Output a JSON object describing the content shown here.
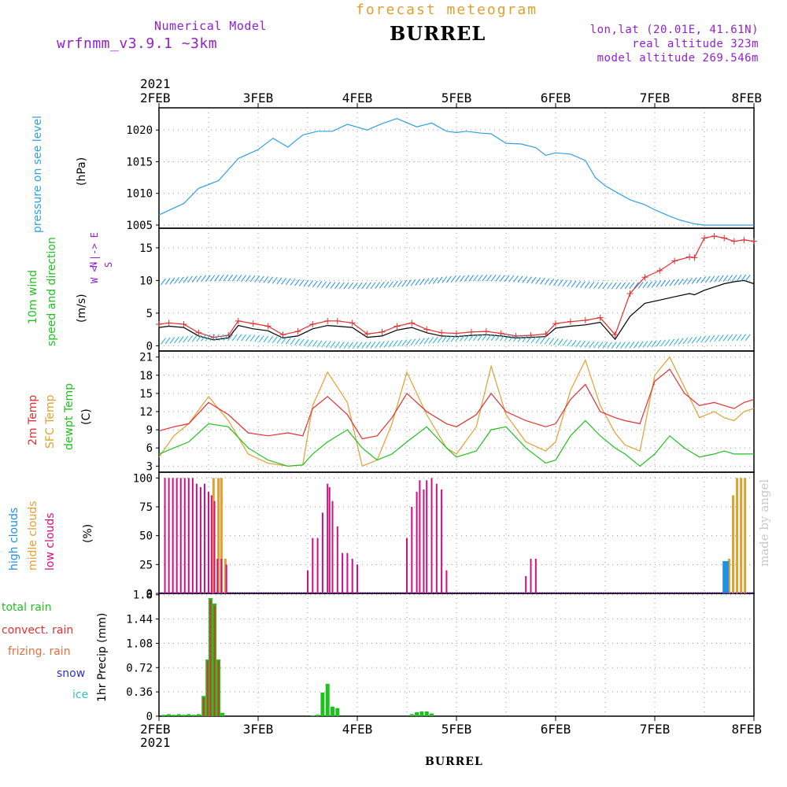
{
  "header": {
    "model_label": "Numerical Model",
    "model_name": "wrfnmm_v3.9.1   ~3km",
    "title": "forecast meteogram",
    "station": "BURREL",
    "lonlat": "lon,lat (20.01E, 41.61N)",
    "real_altitude": "real altitude 323m",
    "model_altitude": "model altitude  269.546m"
  },
  "footer": {
    "station": "BURREL",
    "credit": "made by angel"
  },
  "colors": {
    "pressure": "#30a0e0",
    "wind_speed": "#000000",
    "gust": "#e03030",
    "temp2m": "#e03030",
    "sfc_temp": "#e0a030",
    "dewpt": "#20c020",
    "high_clouds": "#2090e0",
    "mid_clouds": "#e0a030",
    "low_clouds": "#d01080",
    "total_rain": "#20c020",
    "convect_rain": "#e03030",
    "frizing_rain": "#e07040",
    "snow": "#3030c0",
    "ice": "#30c0c0"
  },
  "chart_data": {
    "type": "line",
    "x_year": "2021",
    "x_ticks": [
      "2FEB",
      "3FEB",
      "4FEB",
      "5FEB",
      "6FEB",
      "7FEB",
      "8FEB"
    ],
    "x_range_days": [
      0,
      6
    ],
    "panels": {
      "pressure": {
        "labels": [
          "pressure on see level",
          "(hPa)"
        ],
        "yticks": [
          "1005",
          "1010",
          "1015",
          "1020"
        ],
        "ylim": [
          1004.5,
          1023.5
        ],
        "x": [
          0,
          0.25,
          0.4,
          0.6,
          0.8,
          1.0,
          1.15,
          1.3,
          1.45,
          1.6,
          1.75,
          1.9,
          2.1,
          2.25,
          2.4,
          2.6,
          2.75,
          2.9,
          3.0,
          3.1,
          3.25,
          3.35,
          3.5,
          3.65,
          3.8,
          3.9,
          4.0,
          4.15,
          4.3,
          4.4,
          4.5,
          4.6,
          4.75,
          4.9,
          5.0,
          5.15,
          5.25,
          5.4,
          5.5,
          5.65,
          5.8,
          5.9,
          6.0
        ],
        "values": [
          1006.6,
          1008.4,
          1010.8,
          1012.0,
          1015.5,
          1016.9,
          1018.7,
          1017.3,
          1019.2,
          1019.8,
          1019.8,
          1020.9,
          1020.0,
          1021.0,
          1021.8,
          1020.5,
          1021.1,
          1019.8,
          1019.6,
          1019.8,
          1019.5,
          1019.4,
          1017.9,
          1017.8,
          1017.2,
          1016.0,
          1016.4,
          1016.2,
          1015.2,
          1012.5,
          1011.2,
          1010.3,
          1009.0,
          1008.2,
          1007.4,
          1006.4,
          1005.8,
          1005.2,
          1005.0,
          1005.0,
          1005.0,
          1005.0,
          1005.0
        ]
      },
      "wind": {
        "labels": [
          "10m wind",
          "speed and direction",
          "(m/s)"
        ],
        "compass": [
          "N",
          "W <-|-> E",
          "S"
        ],
        "yticks": [
          "0",
          "5",
          "10",
          "15"
        ],
        "ylim": [
          -0.8,
          18
        ],
        "x": [
          0,
          0.1,
          0.25,
          0.4,
          0.55,
          0.7,
          0.8,
          0.95,
          1.1,
          1.25,
          1.4,
          1.55,
          1.7,
          1.8,
          1.95,
          2.1,
          2.25,
          2.4,
          2.55,
          2.7,
          2.85,
          3.0,
          3.15,
          3.3,
          3.45,
          3.6,
          3.75,
          3.9,
          4.0,
          4.15,
          4.3,
          4.45,
          4.6,
          4.75,
          4.9,
          5.05,
          5.2,
          5.35,
          5.4,
          5.5,
          5.6,
          5.7,
          5.8,
          5.9,
          6.0
        ],
        "speed": [
          2.8,
          3.0,
          2.8,
          1.5,
          0.9,
          1.2,
          3.1,
          2.6,
          2.3,
          1.2,
          1.5,
          2.6,
          3.1,
          3.0,
          2.8,
          1.3,
          1.5,
          2.4,
          2.8,
          2.0,
          1.5,
          1.4,
          1.6,
          1.7,
          1.5,
          1.2,
          1.3,
          1.4,
          2.7,
          3.0,
          3.2,
          3.6,
          1.0,
          4.5,
          6.5,
          7.0,
          7.5,
          8.0,
          7.8,
          8.5,
          9.0,
          9.5,
          9.8,
          10.0,
          9.5
        ],
        "gust": [
          3.3,
          3.5,
          3.3,
          2.0,
          1.3,
          1.6,
          3.8,
          3.4,
          3.0,
          1.7,
          2.2,
          3.3,
          3.8,
          3.8,
          3.5,
          1.8,
          2.1,
          3.0,
          3.5,
          2.5,
          2.0,
          1.9,
          2.1,
          2.2,
          1.9,
          1.5,
          1.6,
          1.8,
          3.4,
          3.7,
          3.9,
          4.3,
          1.7,
          8.0,
          10.5,
          11.5,
          13.0,
          13.6,
          13.5,
          16.5,
          16.8,
          16.5,
          16.0,
          16.2,
          16.0
        ]
      },
      "temperature": {
        "labels": [
          "2m Temp",
          "SFC Temp",
          "dewpt Temp",
          "(C)"
        ],
        "yticks": [
          "3",
          "6",
          "9",
          "12",
          "15",
          "18",
          "21"
        ],
        "ylim": [
          2,
          22
        ],
        "x": [
          0,
          0.15,
          0.3,
          0.5,
          0.7,
          0.9,
          1.1,
          1.3,
          1.45,
          1.55,
          1.7,
          1.9,
          2.05,
          2.2,
          2.35,
          2.5,
          2.7,
          2.9,
          3.0,
          3.2,
          3.35,
          3.5,
          3.7,
          3.9,
          4.0,
          4.15,
          4.3,
          4.45,
          4.6,
          4.7,
          4.85,
          5.0,
          5.15,
          5.3,
          5.45,
          5.6,
          5.7,
          5.8,
          5.9,
          6.0
        ],
        "temp2m": [
          8.8,
          9.5,
          10.0,
          13.5,
          11.5,
          8.5,
          8.0,
          8.5,
          8.0,
          12.5,
          14.5,
          11.5,
          7.5,
          8.0,
          11.0,
          15.0,
          12.0,
          10.0,
          9.5,
          11.5,
          15.0,
          12.0,
          10.5,
          9.5,
          10.0,
          14.0,
          16.5,
          12.0,
          11.0,
          10.5,
          10.0,
          17.0,
          19.0,
          15.0,
          13.0,
          13.5,
          13.0,
          12.5,
          13.5,
          14.0
        ],
        "sfc_temp": [
          4.5,
          8.0,
          10.0,
          14.5,
          10.5,
          5.0,
          3.5,
          3.0,
          3.2,
          13.0,
          18.5,
          13.5,
          3.0,
          4.0,
          10.0,
          18.5,
          11.5,
          6.0,
          5.0,
          9.5,
          19.5,
          11.5,
          7.0,
          5.5,
          7.0,
          15.5,
          20.5,
          13.0,
          8.5,
          6.5,
          5.5,
          18.0,
          21.0,
          16.0,
          11.0,
          12.0,
          11.0,
          10.5,
          12.0,
          12.5
        ],
        "dewpt": [
          5.0,
          6.0,
          7.0,
          10.0,
          9.5,
          6.0,
          4.0,
          3.0,
          3.2,
          5.0,
          7.0,
          9.0,
          6.0,
          4.0,
          5.0,
          7.0,
          9.5,
          6.0,
          4.5,
          5.5,
          9.0,
          9.5,
          6.0,
          3.5,
          4.0,
          8.0,
          10.5,
          8.0,
          6.0,
          5.0,
          3.0,
          5.0,
          8.0,
          6.0,
          4.5,
          5.0,
          5.5,
          5.0,
          5.0,
          5.0
        ]
      },
      "clouds": {
        "labels": [
          "high   clouds",
          "midle clouds",
          "low    clouds",
          "(%)"
        ],
        "yticks": [
          "0",
          "25",
          "50",
          "75",
          "100"
        ],
        "ylim": [
          0,
          105
        ],
        "high": [
          [
            5.7,
            28
          ],
          [
            5.73,
            28
          ]
        ],
        "mid": [
          [
            0.55,
            100
          ],
          [
            0.6,
            100
          ],
          [
            0.63,
            100
          ],
          [
            0.67,
            30
          ],
          [
            5.75,
            30
          ],
          [
            5.79,
            85
          ],
          [
            5.83,
            100
          ],
          [
            5.87,
            100
          ],
          [
            5.91,
            100
          ]
        ],
        "low": [
          [
            0.06,
            100
          ],
          [
            0.1,
            100
          ],
          [
            0.14,
            100
          ],
          [
            0.18,
            100
          ],
          [
            0.22,
            100
          ],
          [
            0.26,
            100
          ],
          [
            0.3,
            100
          ],
          [
            0.34,
            100
          ],
          [
            0.38,
            95
          ],
          [
            0.42,
            92
          ],
          [
            0.46,
            95
          ],
          [
            0.5,
            88
          ],
          [
            0.53,
            85
          ],
          [
            0.56,
            80
          ],
          [
            0.59,
            30
          ],
          [
            0.63,
            30
          ],
          [
            0.68,
            25
          ],
          [
            1.5,
            20
          ],
          [
            1.55,
            48
          ],
          [
            1.6,
            48
          ],
          [
            1.65,
            70
          ],
          [
            1.7,
            95
          ],
          [
            1.72,
            92
          ],
          [
            1.75,
            80
          ],
          [
            1.8,
            58
          ],
          [
            1.85,
            35
          ],
          [
            1.9,
            35
          ],
          [
            1.95,
            30
          ],
          [
            2.0,
            25
          ],
          [
            2.5,
            48
          ],
          [
            2.55,
            75
          ],
          [
            2.6,
            88
          ],
          [
            2.63,
            98
          ],
          [
            2.67,
            90
          ],
          [
            2.7,
            98
          ],
          [
            2.75,
            100
          ],
          [
            2.8,
            95
          ],
          [
            2.85,
            90
          ],
          [
            2.9,
            20
          ],
          [
            3.7,
            15
          ],
          [
            3.75,
            30
          ],
          [
            3.8,
            30
          ]
        ]
      },
      "precip": {
        "labels": [
          "total      rain",
          "convect. rain",
          "frizing.  rain",
          "snow",
          "ice",
          "1hr Precip (mm)"
        ],
        "yticks": [
          "0",
          "0.36",
          "0.72",
          "1.08",
          "1.44",
          "1.8"
        ],
        "ylim": [
          0,
          1.82
        ],
        "total": [
          [
            0.05,
            0.02
          ],
          [
            0.1,
            0.03
          ],
          [
            0.15,
            0.02
          ],
          [
            0.2,
            0.03
          ],
          [
            0.25,
            0.02
          ],
          [
            0.3,
            0.03
          ],
          [
            0.35,
            0.02
          ],
          [
            0.4,
            0.03
          ],
          [
            0.45,
            0.3
          ],
          [
            0.49,
            0.84
          ],
          [
            0.52,
            1.75
          ],
          [
            0.56,
            1.67
          ],
          [
            0.6,
            0.84
          ],
          [
            0.64,
            0.05
          ],
          [
            1.55,
            0.01
          ],
          [
            1.6,
            0.02
          ],
          [
            1.65,
            0.35
          ],
          [
            1.7,
            0.48
          ],
          [
            1.75,
            0.14
          ],
          [
            1.8,
            0.12
          ],
          [
            2.55,
            0.03
          ],
          [
            2.6,
            0.06
          ],
          [
            2.65,
            0.07
          ],
          [
            2.7,
            0.07
          ],
          [
            2.75,
            0.04
          ]
        ],
        "convect": [
          [
            0.45,
            0.28
          ],
          [
            0.49,
            0.82
          ],
          [
            0.52,
            1.72
          ],
          [
            0.56,
            1.64
          ],
          [
            0.6,
            0.82
          ]
        ]
      }
    }
  }
}
